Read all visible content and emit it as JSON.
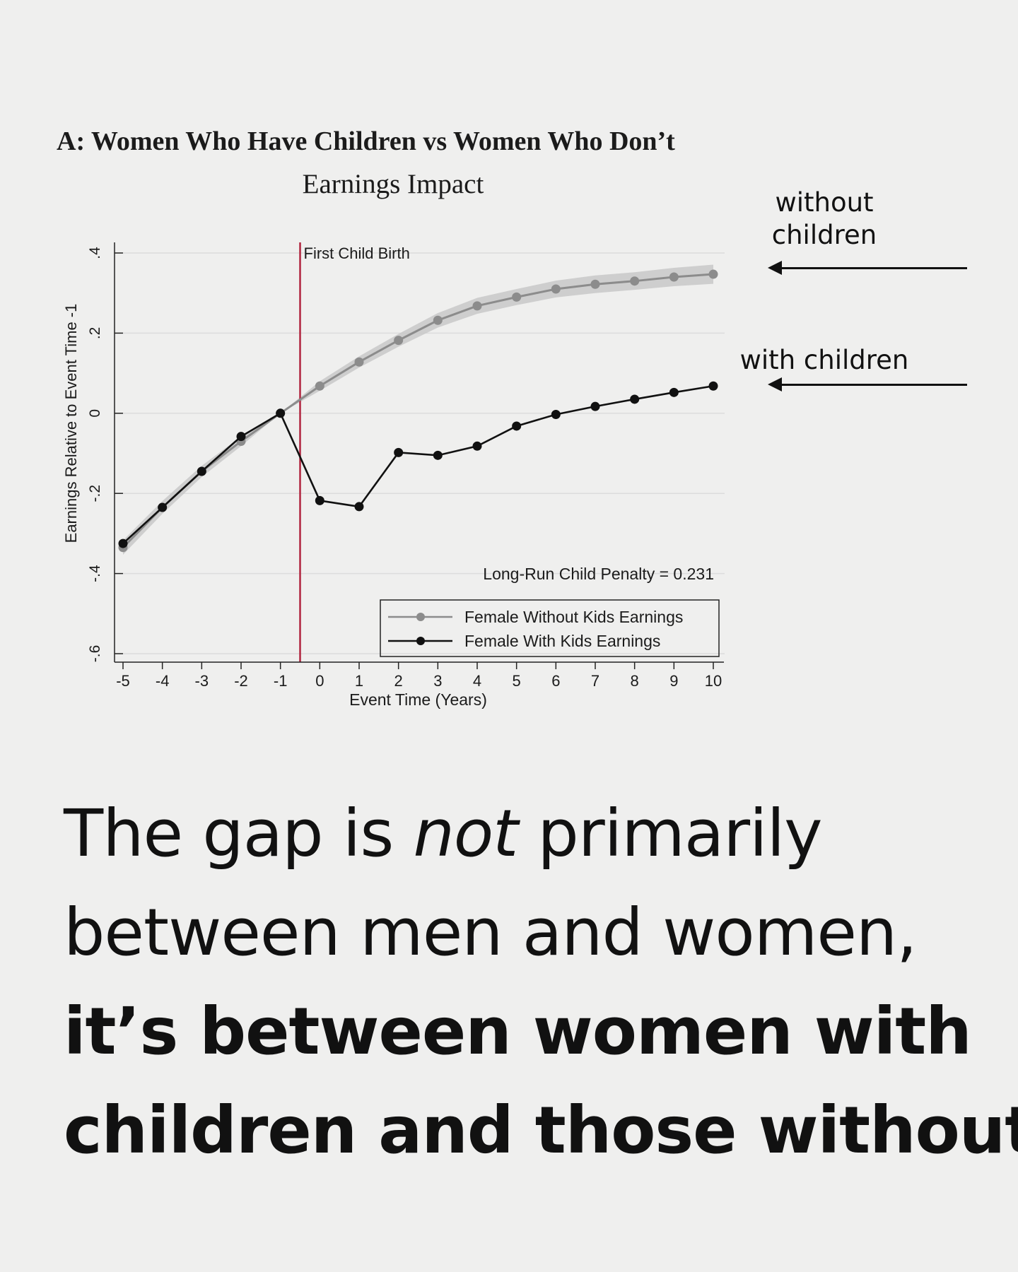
{
  "heading": "A: Women Who Have Children vs Women Who Don’t",
  "subheading": "Earnings Impact",
  "annotations": {
    "without": [
      "without",
      "children"
    ],
    "with": "with children"
  },
  "caption": {
    "line1_pre": "The gap is ",
    "line1_em": "not",
    "line1_post": " primarily",
    "line2": "between men and women,",
    "line3": "it’s between women with",
    "line4": "children and those without."
  },
  "colors": {
    "background": "#efefee",
    "without_kids": "#8c8c8c",
    "with_kids": "#111111",
    "birth_line": "#b0243e",
    "ci_band": "#c8c8c8"
  },
  "chart_data": {
    "type": "line",
    "title": "Earnings Impact",
    "xlabel": "Event Time (Years)",
    "ylabel": "Earnings Relative to Event Time -1",
    "x": [
      -5,
      -4,
      -3,
      -2,
      -1,
      0,
      1,
      2,
      3,
      4,
      5,
      6,
      7,
      8,
      9,
      10
    ],
    "xlim": [
      -5,
      10
    ],
    "ylim": [
      -0.6,
      0.4
    ],
    "yticks": [
      0.4,
      0.2,
      0,
      -0.2,
      -0.4,
      -0.6
    ],
    "ytick_labels": [
      ".4",
      ".2",
      "0",
      "-.2",
      "-.4",
      "-.6"
    ],
    "grid": true,
    "legend_position": "bottom-right",
    "series": [
      {
        "name": "Female Without Kids Earnings",
        "color": "#8c8c8c",
        "values": [
          -0.335,
          -0.235,
          -0.145,
          -0.07,
          0.0,
          0.068,
          0.128,
          0.182,
          0.232,
          0.268,
          0.29,
          0.31,
          0.322,
          0.33,
          0.34,
          0.347
        ],
        "ci_halfwidth": [
          0.018,
          0.016,
          0.014,
          0.012,
          0.0,
          0.012,
          0.014,
          0.016,
          0.018,
          0.02,
          0.02,
          0.021,
          0.022,
          0.022,
          0.023,
          0.024
        ]
      },
      {
        "name": "Female With Kids Earnings",
        "color": "#111111",
        "values": [
          -0.325,
          -0.235,
          -0.145,
          -0.058,
          0.0,
          -0.218,
          -0.233,
          -0.098,
          -0.105,
          -0.082,
          -0.032,
          -0.003,
          0.017,
          0.035,
          0.052,
          0.068
        ]
      }
    ],
    "vline": {
      "x": -0.5,
      "label": "First Child Birth"
    },
    "annotation": "Long-Run Child Penalty = 0.231"
  }
}
